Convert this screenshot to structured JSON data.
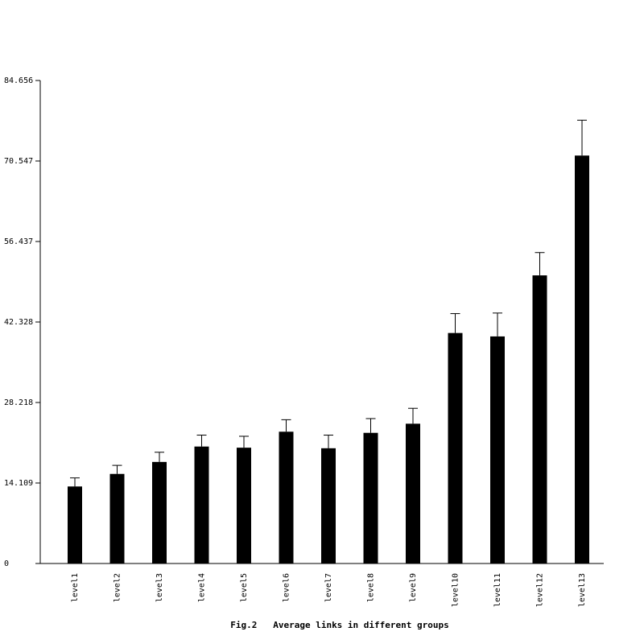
{
  "chart_data": {
    "type": "bar",
    "title": "Fig.2   Average links in different groups",
    "categories": [
      "level1",
      "level2",
      "level3",
      "level4",
      "level5",
      "level6",
      "level7",
      "level8",
      "level9",
      "level10",
      "level11",
      "level12",
      "level13"
    ],
    "values": [
      13.5,
      15.7,
      17.8,
      20.5,
      20.3,
      23.1,
      20.2,
      22.9,
      24.5,
      40.4,
      39.8,
      50.5,
      71.5
    ],
    "errors": [
      1.5,
      1.5,
      1.7,
      2.0,
      2.0,
      2.1,
      2.3,
      2.5,
      2.7,
      3.4,
      4.1,
      4.0,
      6.2
    ],
    "color": "#000000",
    "ylim": [
      0,
      84.656
    ],
    "yticks": [
      0,
      14.109,
      28.218,
      42.328,
      56.437,
      70.547,
      84.656
    ],
    "grid": false
  }
}
